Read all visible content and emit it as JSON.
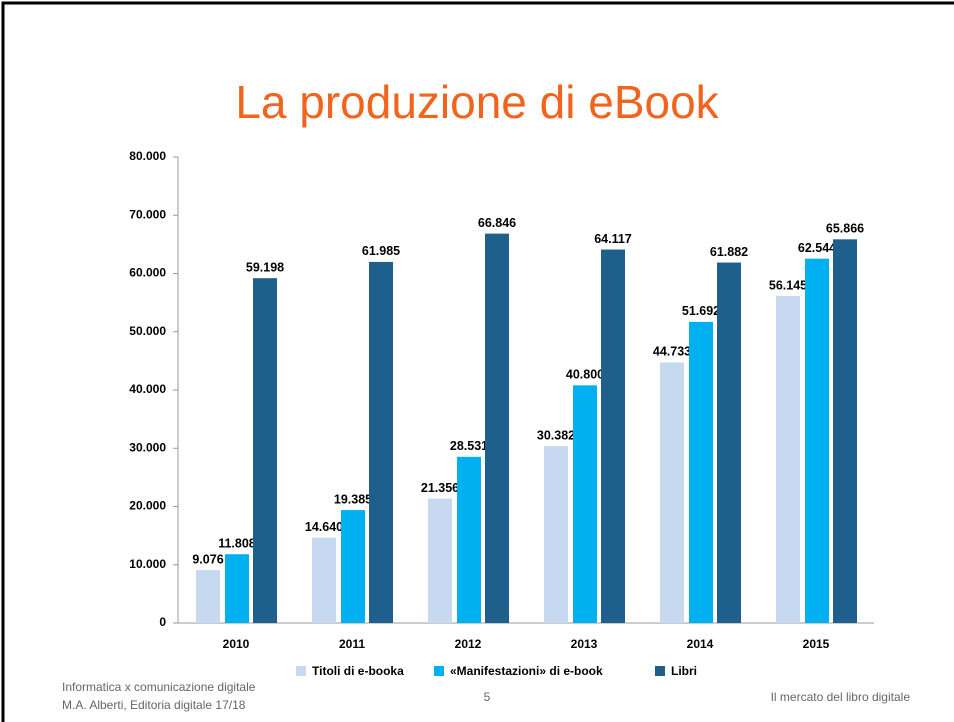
{
  "chart_data": {
    "type": "bar",
    "title": "La produzione di eBook",
    "categories": [
      "2010",
      "2011",
      "2012",
      "2013",
      "2014",
      "2015"
    ],
    "series": [
      {
        "name": "Titoli di e-booka",
        "color": "#c6d9f1",
        "values": [
          9076,
          14640,
          21356,
          30382,
          44733,
          56145
        ],
        "value_labels": [
          "9.076",
          "14.640",
          "21.356",
          "30.382",
          "44.733",
          "56.145"
        ]
      },
      {
        "name": "«Manifestazioni» di e-book",
        "color": "#00b0f0",
        "values": [
          11808,
          19385,
          28531,
          40800,
          51692,
          62544
        ],
        "value_labels": [
          "11.808",
          "19.385",
          "28.531",
          "40.800",
          "51.692",
          "62.544"
        ]
      },
      {
        "name": "Libri",
        "color": "#1f5f8b",
        "values": [
          59198,
          61985,
          66846,
          64117,
          61882,
          65866
        ],
        "value_labels": [
          "59.198",
          "61.985",
          "66.846",
          "64.117",
          "61.882",
          "65.866"
        ]
      }
    ],
    "ylim": [
      0,
      80000
    ],
    "yticks": [
      0,
      {
        "value": 10000,
        "label": "10.000"
      },
      {
        "value": 20000,
        "label": "20.000"
      },
      {
        "value": 30000,
        "label": "30.000"
      },
      {
        "value": 40000,
        "label": "40.000"
      },
      {
        "value": 50000,
        "label": "50.000"
      },
      {
        "value": 60000,
        "label": "60.000"
      },
      {
        "value": 70000,
        "label": "70.000"
      },
      {
        "value": 80000,
        "label": "80.000"
      }
    ],
    "grid": false,
    "legend": "bottom"
  },
  "footer": {
    "left": [
      "Informatica x comunicazione digitale",
      "M.A. Alberti, Editoria digitale 17/18"
    ],
    "page": "5",
    "right": "Il mercato del libro digitale"
  }
}
